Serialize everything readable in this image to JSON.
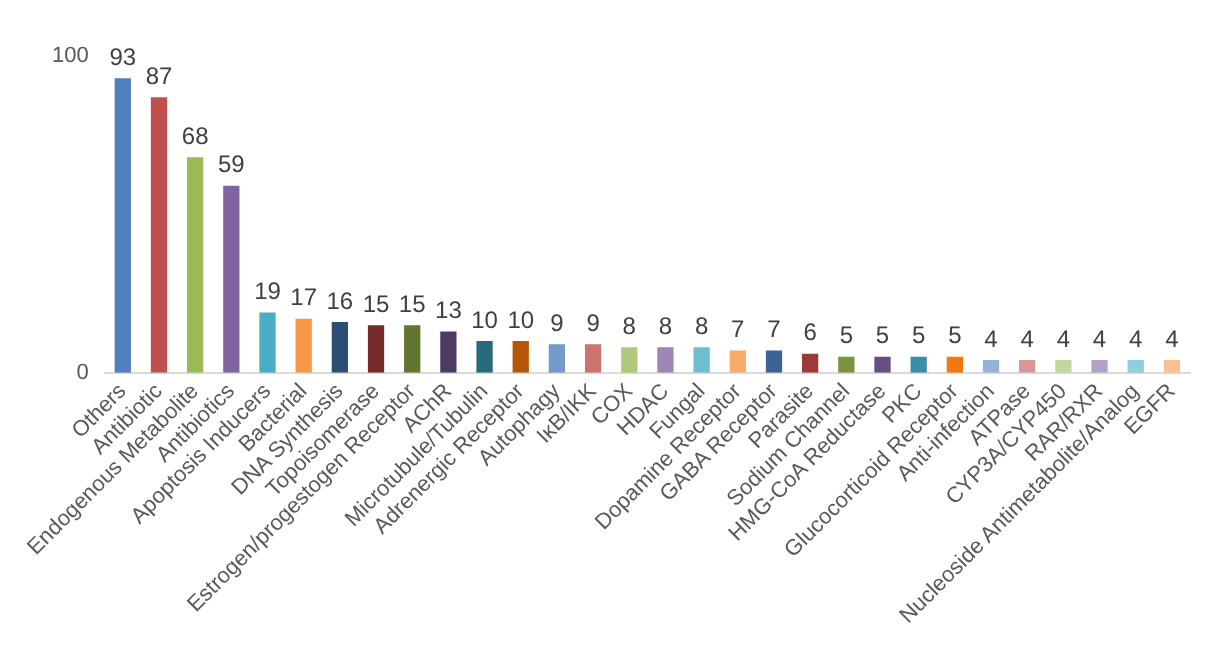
{
  "chart_data": {
    "type": "bar",
    "categories": [
      "Others",
      "Antibiotic",
      "Endogenous Metabolite",
      "Antibiotics",
      "Apoptosis Inducers",
      "Bacterial",
      "DNA Synthesis",
      "Topoisomerase",
      "Estrogen/progestogen Receptor",
      "AChR",
      "Microtubule/Tubulin",
      "Adrenergic Receptor",
      "Autophagy",
      "IκB/IKK",
      "COX",
      "HDAC",
      "Fungal",
      "Dopamine Receptor",
      "GABA Receptor",
      "Parasite",
      "Sodium Channel",
      "HMG-CoA Reductase",
      "PKC",
      "Glucocorticoid Receptor",
      "Anti-infection",
      "ATPase",
      "CYP3A/CYP450",
      "RAR/RXR",
      "Nucleoside Antimetabolite/Analog",
      "EGFR"
    ],
    "values": [
      93,
      87,
      68,
      59,
      19,
      17,
      16,
      15,
      15,
      13,
      10,
      10,
      9,
      9,
      8,
      8,
      8,
      7,
      7,
      6,
      5,
      5,
      5,
      5,
      4,
      4,
      4,
      4,
      4,
      4
    ],
    "colors": [
      "#4f81bd",
      "#c0504d",
      "#9bbb59",
      "#8064a2",
      "#4bacc6",
      "#f79646",
      "#2c4d75",
      "#772c2a",
      "#5f7530",
      "#4d3b62",
      "#276a7c",
      "#b65708",
      "#729aca",
      "#cd7371",
      "#afc97a",
      "#9d87b8",
      "#6fbdd1",
      "#f9ab6b",
      "#3a6496",
      "#9c3a38",
      "#7a9340",
      "#644e82",
      "#3a8fa6",
      "#f0780e",
      "#95b3d7",
      "#d99694",
      "#c3d69b",
      "#b2a1c7",
      "#93cddd",
      "#fac090"
    ],
    "ylim": [
      0,
      100
    ],
    "yticks": [
      0,
      100
    ],
    "grid": false,
    "data_labels": true,
    "legend": false
  }
}
